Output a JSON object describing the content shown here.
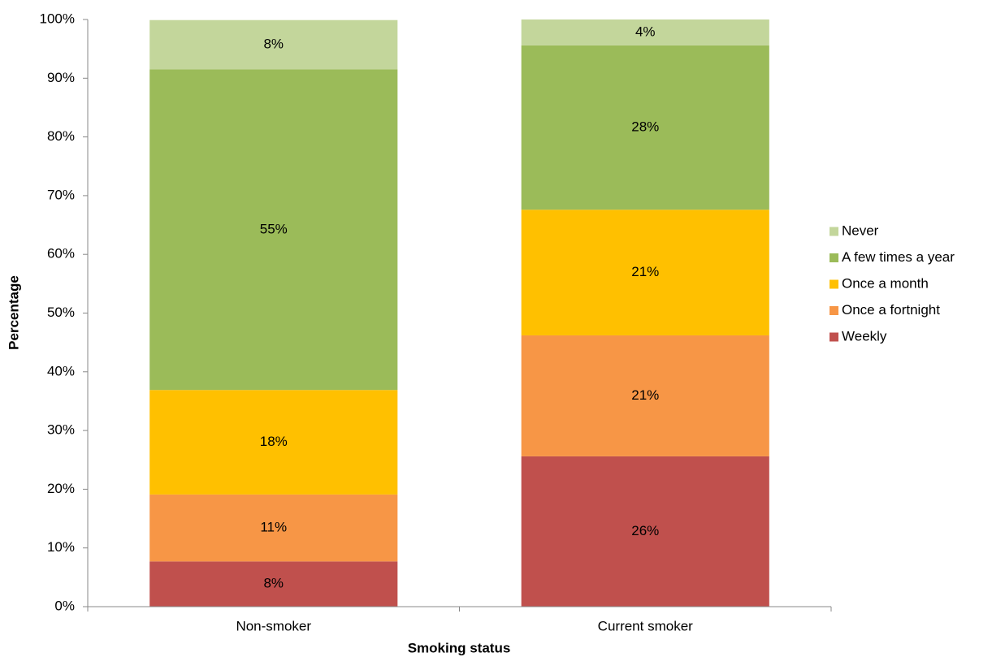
{
  "chart_data": {
    "type": "stacked_bar",
    "x_label": "Smoking status",
    "y_label": "Percentage",
    "categories": [
      "Non-smoker",
      "Current smoker"
    ],
    "series": [
      {
        "name": "Weekly",
        "color": "#c0504d",
        "values": [
          7.7,
          25.6
        ],
        "value_labels": [
          "8%",
          "26%"
        ]
      },
      {
        "name": "Once a fortnight",
        "color": "#f79646",
        "values": [
          11.4,
          20.6
        ],
        "value_labels": [
          "11%",
          "21%"
        ]
      },
      {
        "name": "Once a month",
        "color": "#ffc000",
        "values": [
          17.8,
          21.4
        ],
        "value_labels": [
          "18%",
          "21%"
        ]
      },
      {
        "name": "A few times a year",
        "color": "#9bbb59",
        "values": [
          54.6,
          28.0
        ],
        "value_labels": [
          "55%",
          "28%"
        ]
      },
      {
        "name": "Never",
        "color": "#c3d69b",
        "values": [
          8.4,
          4.4
        ],
        "value_labels": [
          "8%",
          "4%"
        ]
      }
    ],
    "ylim": [
      0,
      100
    ],
    "yticks": [
      {
        "value": 0,
        "label": "0%"
      },
      {
        "value": 10,
        "label": "10%"
      },
      {
        "value": 20,
        "label": "20%"
      },
      {
        "value": 30,
        "label": "30%"
      },
      {
        "value": 40,
        "label": "40%"
      },
      {
        "value": 50,
        "label": "50%"
      },
      {
        "value": 60,
        "label": "60%"
      },
      {
        "value": 70,
        "label": "70%"
      },
      {
        "value": 80,
        "label": "80%"
      },
      {
        "value": 90,
        "label": "90%"
      },
      {
        "value": 100,
        "label": "100%"
      }
    ],
    "grid": false,
    "legend": "right"
  }
}
